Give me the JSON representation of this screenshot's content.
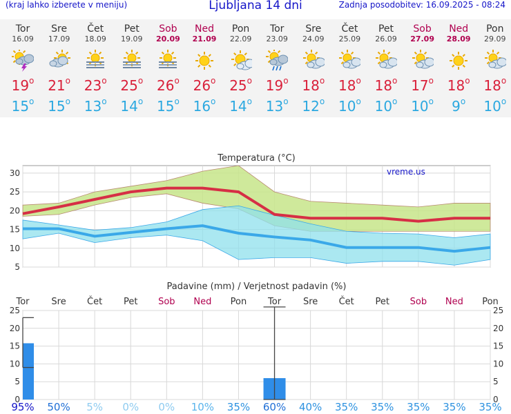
{
  "header": {
    "left_note": "(kraj lahko izberete v meniju)",
    "title": "Ljubljana 14 dni",
    "updated": "Zadnja posodobitev: 16.09.2025 - 08:24"
  },
  "days": [
    {
      "name": "Tor",
      "date": "16.09",
      "weekend": false,
      "icon": "sun-cloud-thunder-icon",
      "tmax": "19",
      "tmin": "15"
    },
    {
      "name": "Sre",
      "date": "17.09",
      "weekend": false,
      "icon": "cloud-sun-icon",
      "tmax": "21",
      "tmin": "15"
    },
    {
      "name": "Čet",
      "date": "18.09",
      "weekend": false,
      "icon": "sun-fog-icon",
      "tmax": "23",
      "tmin": "13"
    },
    {
      "name": "Pet",
      "date": "19.09",
      "weekend": false,
      "icon": "sun-fog-icon",
      "tmax": "25",
      "tmin": "14"
    },
    {
      "name": "Sob",
      "date": "20.09",
      "weekend": true,
      "icon": "sun-fog-icon",
      "tmax": "26",
      "tmin": "15"
    },
    {
      "name": "Ned",
      "date": "21.09",
      "weekend": true,
      "icon": "sun-icon",
      "tmax": "26",
      "tmin": "16"
    },
    {
      "name": "Pon",
      "date": "22.09",
      "weekend": false,
      "icon": "sun-small-cloud-icon",
      "tmax": "25",
      "tmin": "14"
    },
    {
      "name": "Tor",
      "date": "23.09",
      "weekend": false,
      "icon": "sun-cloud-rain-icon",
      "tmax": "19",
      "tmin": "13"
    },
    {
      "name": "Sre",
      "date": "24.09",
      "weekend": false,
      "icon": "sun-cloud-icon",
      "tmax": "18",
      "tmin": "12"
    },
    {
      "name": "Čet",
      "date": "25.09",
      "weekend": false,
      "icon": "sun-cloud-icon",
      "tmax": "18",
      "tmin": "10"
    },
    {
      "name": "Pet",
      "date": "26.09",
      "weekend": false,
      "icon": "sun-cloud-icon",
      "tmax": "18",
      "tmin": "10"
    },
    {
      "name": "Sob",
      "date": "27.09",
      "weekend": true,
      "icon": "sun-cloud-icon",
      "tmax": "17",
      "tmin": "10"
    },
    {
      "name": "Ned",
      "date": "28.09",
      "weekend": true,
      "icon": "sun-icon",
      "tmax": "18",
      "tmin": "9"
    },
    {
      "name": "Pon",
      "date": "29.09",
      "weekend": false,
      "icon": "sun-cloud-icon",
      "tmax": "18",
      "tmin": "10"
    }
  ],
  "chart_data": [
    {
      "type": "line",
      "title": "Temperatura (°C)",
      "watermark": "vreme.us",
      "ylim": [
        5,
        32
      ],
      "yticks": [
        5,
        10,
        15,
        20,
        25,
        30
      ],
      "grid": true,
      "categories": [
        "16.09",
        "17.09",
        "18.09",
        "19.09",
        "20.09",
        "21.09",
        "22.09",
        "23.09",
        "24.09",
        "25.09",
        "26.09",
        "27.09",
        "28.09",
        "29.09"
      ],
      "series": [
        {
          "role": "max",
          "color": "#d62f45",
          "values": [
            19.2,
            21,
            23,
            25,
            26,
            26,
            25,
            19,
            18,
            18,
            18,
            17.2,
            18,
            18
          ],
          "band_low": [
            18.5,
            19,
            21.5,
            23.5,
            24.5,
            22,
            20.5,
            16,
            14.5,
            14.5,
            14.5,
            14.5,
            14.5,
            14.5
          ],
          "band_high": [
            21.5,
            22,
            25,
            26.5,
            28,
            30.5,
            32,
            25,
            22.5,
            22,
            21.5,
            21,
            22,
            22
          ]
        },
        {
          "role": "min",
          "color": "#3aa8e8",
          "values": [
            15.2,
            15.2,
            13.2,
            14.2,
            15.2,
            16,
            14,
            13,
            12.2,
            10.2,
            10.2,
            10.2,
            9.2,
            10.2
          ],
          "band_low": [
            12.5,
            14,
            11.5,
            12.8,
            13.5,
            12,
            7,
            7.5,
            7.5,
            6,
            6.5,
            6.5,
            5.5,
            7
          ],
          "band_high": [
            17.5,
            16.2,
            14.8,
            15.5,
            17,
            20.3,
            21.3,
            18.8,
            16.5,
            14.5,
            14,
            13.8,
            12.8,
            13.8
          ]
        }
      ]
    },
    {
      "type": "bar",
      "title": "Padavine (mm) / Verjetnost padavin (%)",
      "ylim": [
        0,
        25
      ],
      "yticks": [
        0,
        5,
        10,
        15,
        20,
        25
      ],
      "grid": true,
      "categories": [
        "Tor",
        "Sre",
        "Čet",
        "Pet",
        "Sob",
        "Ned",
        "Pon",
        "Tor",
        "Sre",
        "Čet",
        "Pet",
        "Sob",
        "Ned",
        "Pon"
      ],
      "values": [
        15.8,
        0,
        0,
        0,
        0,
        0,
        0,
        6,
        0,
        0,
        0,
        0,
        0,
        0
      ],
      "range_low": [
        9,
        null,
        null,
        null,
        null,
        null,
        null,
        0,
        null,
        null,
        null,
        null,
        null,
        null
      ],
      "range_high": [
        23,
        null,
        null,
        null,
        null,
        null,
        null,
        26,
        null,
        null,
        null,
        null,
        null,
        null
      ],
      "probability": [
        "95%",
        "50%",
        "5%",
        "0%",
        "0%",
        "10%",
        "35%",
        "60%",
        "40%",
        "35%",
        "35%",
        "35%",
        "35%",
        "35%"
      ],
      "probability_colors": [
        "#1515c8",
        "#1f6fd6",
        "#8ecbf0",
        "#8ecbf0",
        "#8ecbf0",
        "#5ab4ec",
        "#2e92e0",
        "#1f6fd6",
        "#2e92e0",
        "#2e92e0",
        "#2e92e0",
        "#2e92e0",
        "#2e92e0",
        "#2e92e0"
      ]
    }
  ]
}
